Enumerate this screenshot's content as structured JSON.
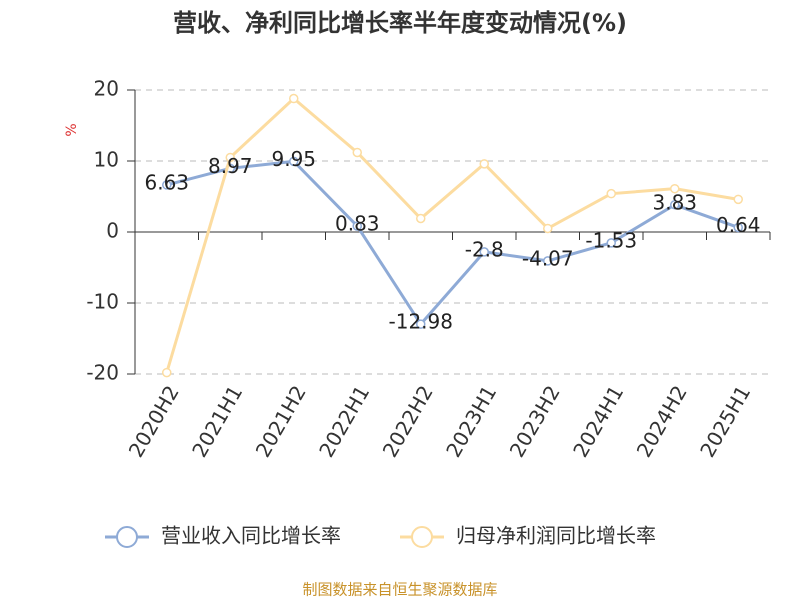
{
  "chart_data": {
    "type": "line",
    "title": "营收、净利同比增长率半年度变动情况(%)",
    "y_label": "%",
    "categories": [
      "2020H2",
      "2021H1",
      "2021H2",
      "2022H1",
      "2022H2",
      "2023H1",
      "2023H2",
      "2024H1",
      "2024H2",
      "2025H1"
    ],
    "series": [
      {
        "name": "营业收入同比增长率",
        "color": "#8eaad6",
        "values": [
          6.63,
          8.97,
          9.95,
          0.83,
          -12.98,
          -2.8,
          -4.07,
          -1.53,
          3.83,
          0.64
        ],
        "show_labels": true
      },
      {
        "name": "归母净利润同比增长率",
        "color": "#fcdca0",
        "values": [
          -19.8,
          10.5,
          18.8,
          11.2,
          1.9,
          9.6,
          0.5,
          5.4,
          6.1,
          4.6
        ],
        "show_labels": false
      }
    ],
    "ylim": [
      -20,
      20
    ],
    "yticks": [
      -20,
      -10,
      0,
      10,
      20
    ],
    "grid": true,
    "source": "制图数据来自恒生聚源数据库"
  }
}
